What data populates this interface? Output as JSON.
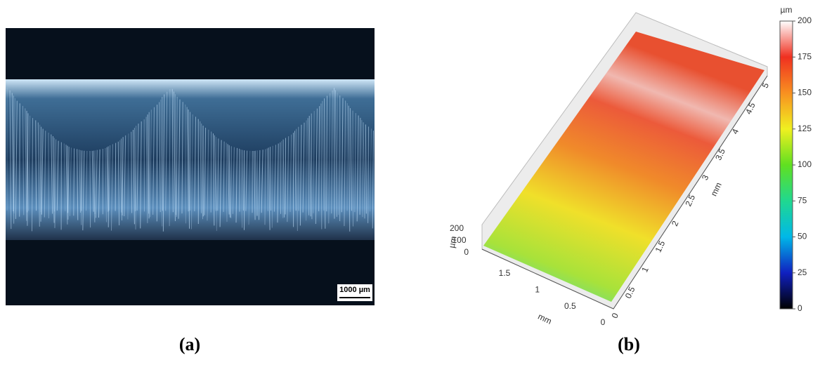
{
  "panels": [
    {
      "label": "(a)",
      "scale_bar": "1000 µm"
    },
    {
      "label": "(b)",
      "colorbar": {
        "unit": "µm",
        "ticks": [
          0,
          25,
          50,
          75,
          100,
          125,
          150,
          175,
          200
        ]
      },
      "z_axis": {
        "label": "µm",
        "ticks": [
          0,
          100,
          200
        ]
      },
      "x_axis": {
        "label": "mm",
        "ticks": [
          0,
          0.5,
          1,
          1.5
        ]
      },
      "y_axis": {
        "label": "mm",
        "ticks": [
          0,
          0.5,
          1,
          1.5,
          2,
          2.5,
          3,
          3.5,
          4,
          4.5,
          5
        ]
      }
    }
  ]
}
